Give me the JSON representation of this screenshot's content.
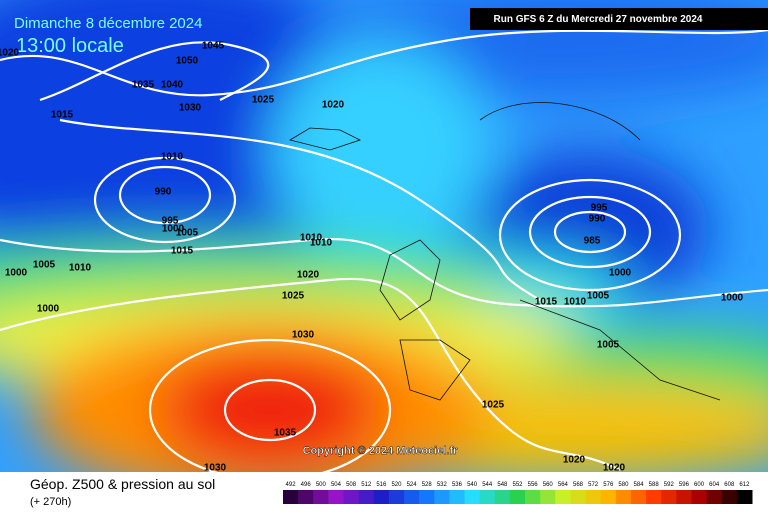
{
  "header": {
    "date": "Dimanche 8 décembre 2024",
    "time": "13:00 locale",
    "run": "Run GFS 6 Z du Mercredi 27 novembre 2024"
  },
  "isobar_labels": [
    "1020",
    "1045",
    "1050",
    "1035",
    "1040",
    "1030",
    "1025",
    "1020",
    "1015",
    "1010",
    "990",
    "995",
    "1000",
    "1005",
    "1015",
    "1010",
    "1010",
    "1005",
    "1010",
    "1000",
    "1000",
    "1020",
    "1025",
    "1030",
    "1035",
    "1030",
    "995",
    "990",
    "985",
    "1000",
    "1015",
    "1010",
    "1005",
    "1000",
    "1005",
    "1025",
    "1020",
    "1020"
  ],
  "copyright": "Copyright © 2024 Meteociel.fr",
  "footer": {
    "title": "Géop. Z500 & pression au sol",
    "lead": "(+ 270h)"
  },
  "colorbar": {
    "labels": [
      492,
      496,
      500,
      504,
      508,
      512,
      516,
      520,
      524,
      528,
      532,
      536,
      540,
      544,
      548,
      552,
      556,
      560,
      564,
      568,
      572,
      576,
      580,
      584,
      588,
      592,
      596,
      600,
      604,
      608,
      612
    ]
  }
}
